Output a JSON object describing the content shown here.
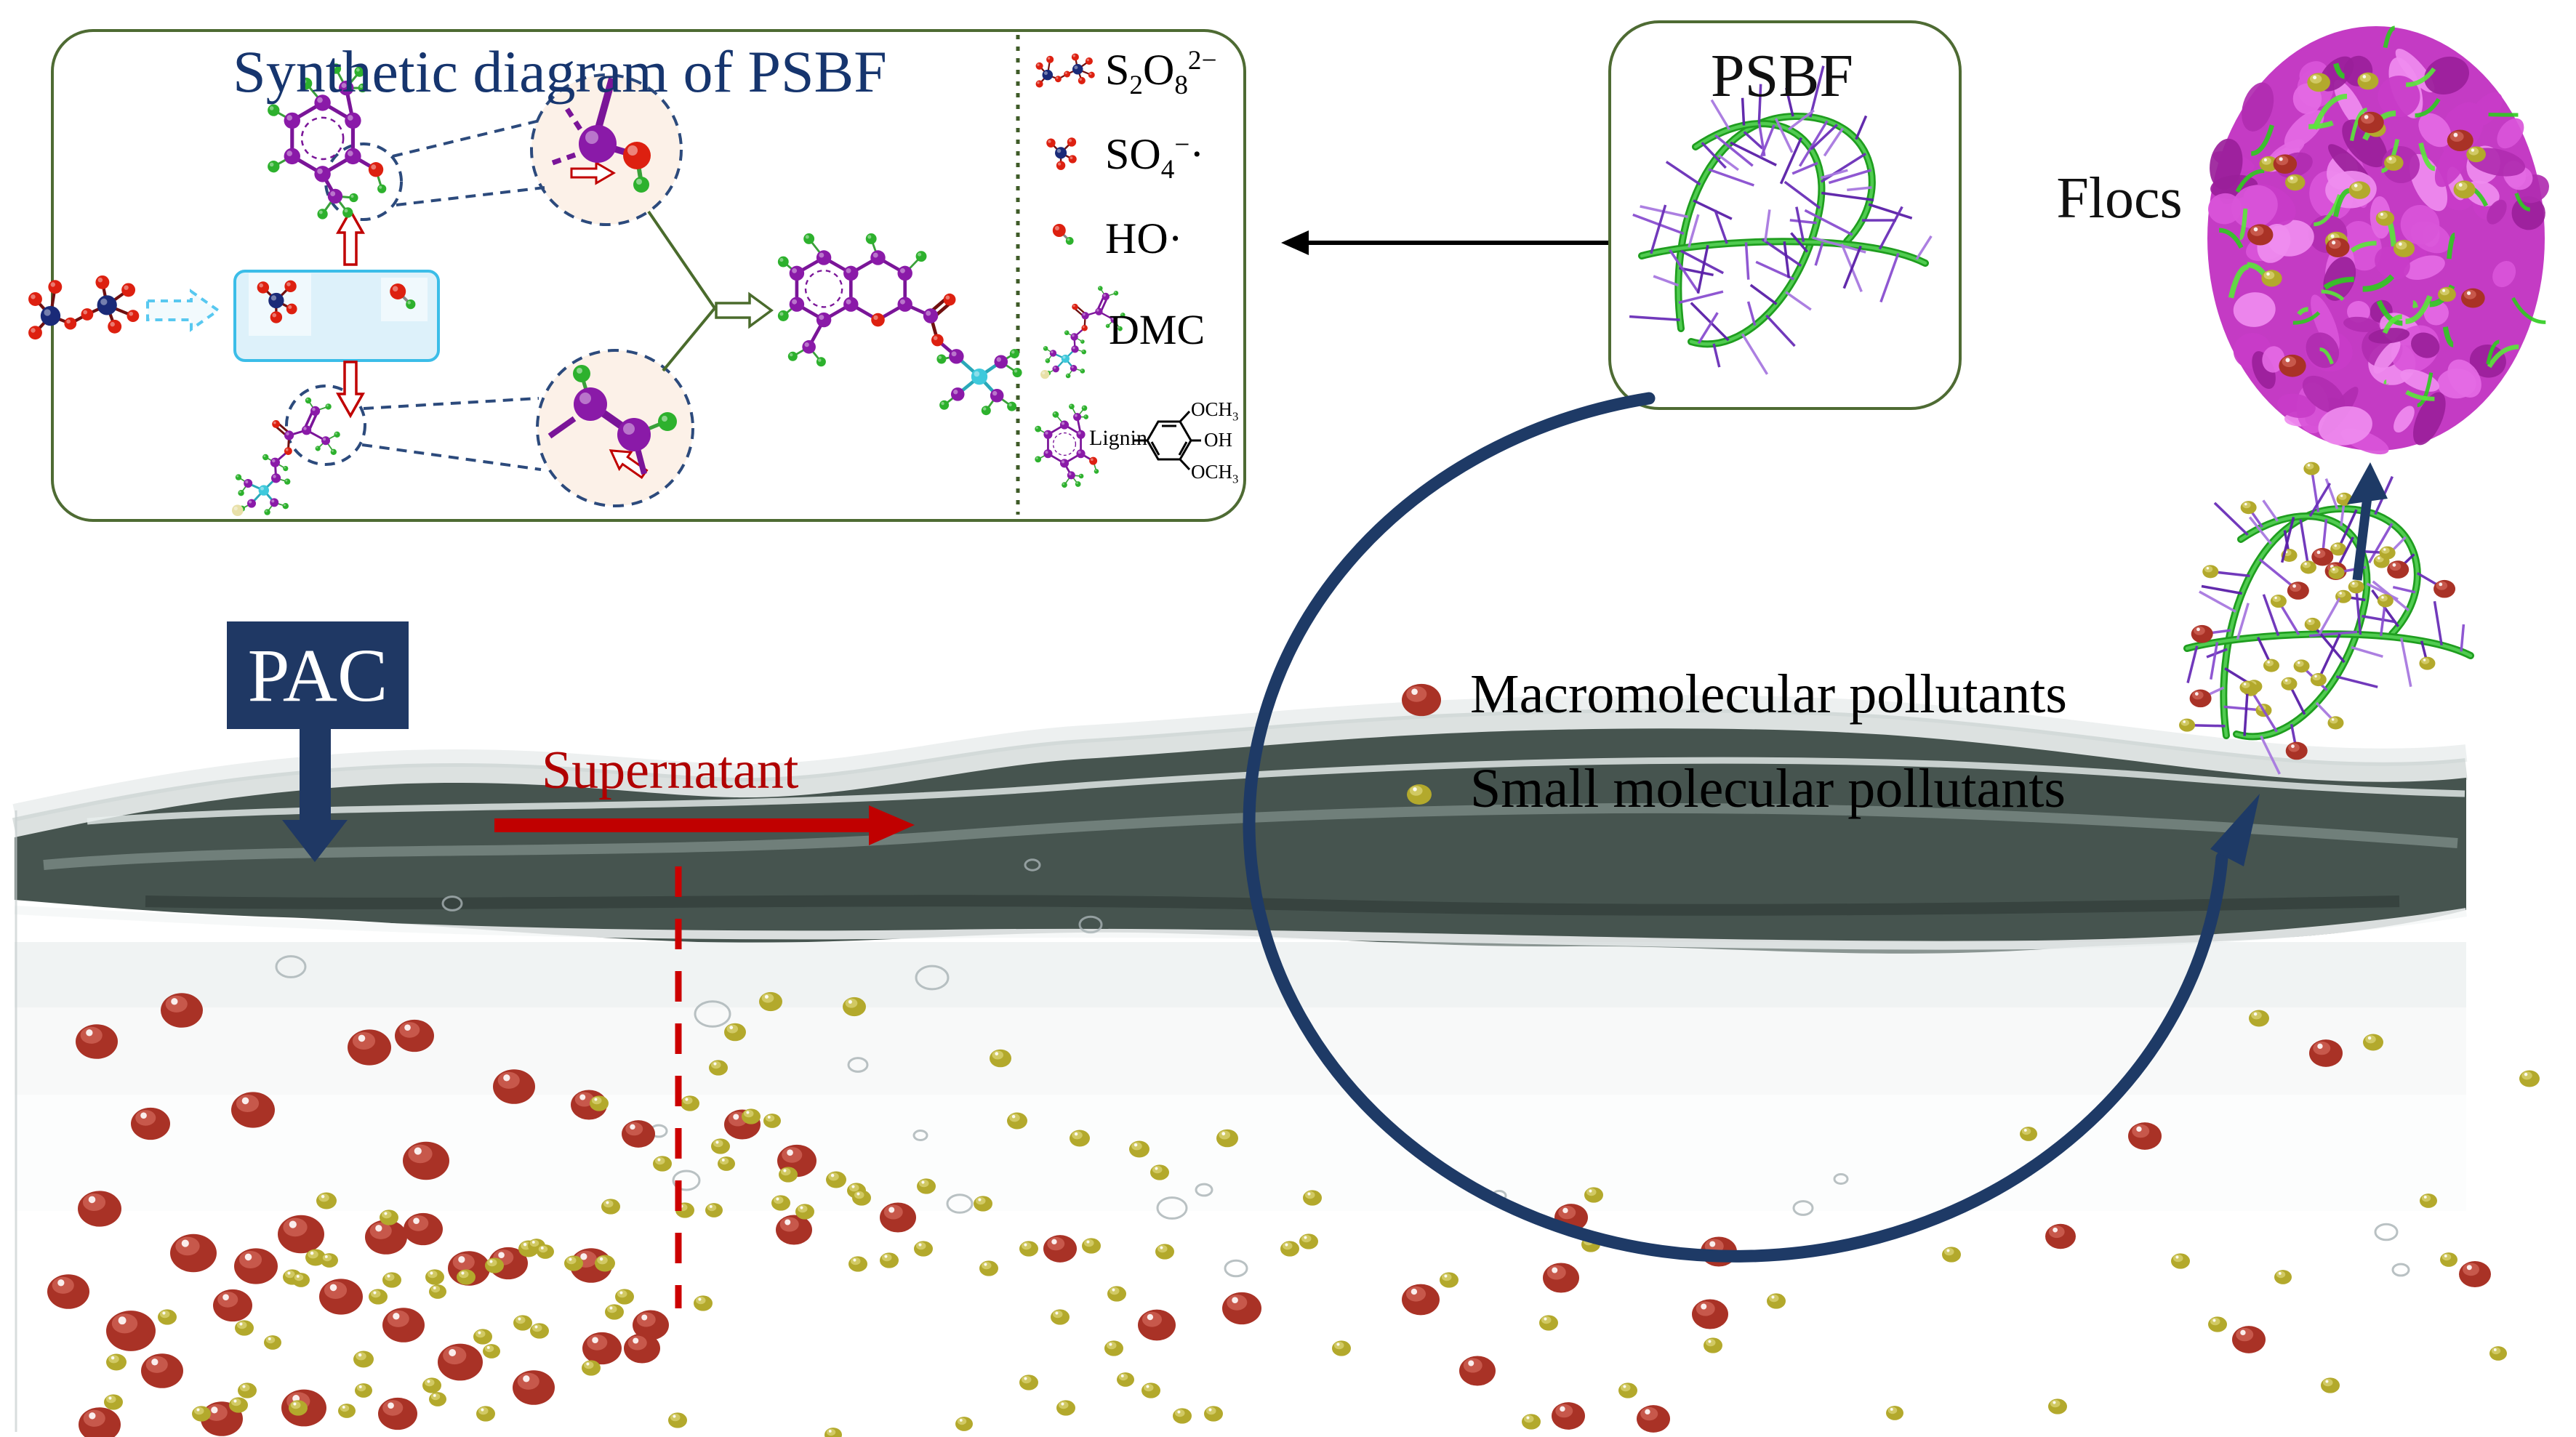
{
  "figure": {
    "synthetic_box": {
      "title": "Synthetic diagram of PSBF",
      "legend": {
        "persulfate": {
          "formula_html": "S<sub>2</sub>O<sub>8</sub><sup>2−</sup>"
        },
        "sulfate_radical": {
          "formula_html": "SO<sub>4</sub><sup>−</sup>·"
        },
        "hydroxyl_radical": {
          "formula_html": "HO·"
        },
        "dmc": {
          "label": "DMC"
        },
        "lignin": {
          "label": "Lignin",
          "och3_top_html": "OCH<sub>3</sub>",
          "oh": "OH",
          "och3_bottom_html": "OCH<sub>3</sub>"
        }
      }
    },
    "psbf_box": {
      "title": "PSBF"
    },
    "flocs_label": "Flocs",
    "pollutant_legend": {
      "macromolecular": "Macromolecular pollutants",
      "small_molecular": "Small molecular pollutants"
    },
    "pac_label": "PAC",
    "supernatant_label": "Supernatant",
    "colors": {
      "title_blue": "#16356e",
      "pac_navy": "#1f3864",
      "supernatant_red": "#b00000",
      "arrow_red": "#c00000",
      "cycle_navy": "#1e3a66",
      "box_border_green": "#4e6b33",
      "blue_box_fill": "#ddf1fa",
      "blue_box_border": "#3bbde8",
      "macro_pollutant_red": "#a93226",
      "macro_pollutant_red_hi": "#cd5f52",
      "small_pollutant_yellow": "#b3a92c",
      "small_pollutant_yellow_hi": "#d6cf6d",
      "polymer_green": "#1f9e1f",
      "polymer_green_hi": "#55d055",
      "bristle_purples": [
        "#6a2fb8",
        "#8a4fd0",
        "#a879e0",
        "#5a1fa8"
      ],
      "flocs_magenta": "#c43bc4",
      "atom_carbon": "#8a1aa8",
      "atom_hydrogen": "#2db12d",
      "atom_oxygen": "#dd2010",
      "atom_sulfur": "#1a2a78",
      "atom_nitrogen": "#3ec9dc",
      "atom_counterion": "#e8e0a8"
    },
    "water_scene": {
      "red_particles": [
        [
          250,
          1390,
          29
        ],
        [
          133,
          1433,
          29
        ],
        [
          508,
          1441,
          30
        ],
        [
          570,
          1425,
          27
        ],
        [
          348,
          1527,
          30
        ],
        [
          207,
          1546,
          27
        ],
        [
          707,
          1495,
          29
        ],
        [
          586,
          1597,
          32
        ],
        [
          137,
          1663,
          30
        ],
        [
          414,
          1698,
          32
        ],
        [
          531,
          1702,
          29
        ],
        [
          582,
          1691,
          27
        ],
        [
          266,
          1724,
          32
        ],
        [
          352,
          1742,
          30
        ],
        [
          94,
          1777,
          29
        ],
        [
          469,
          1784,
          30
        ],
        [
          180,
          1831,
          34
        ],
        [
          223,
          1886,
          29
        ],
        [
          320,
          1796,
          27
        ],
        [
          645,
          1745,
          29
        ],
        [
          699,
          1738,
          27
        ],
        [
          813,
          1741,
          29
        ],
        [
          828,
          1855,
          27
        ],
        [
          555,
          1823,
          29
        ],
        [
          633,
          1874,
          31
        ],
        [
          734,
          1909,
          29
        ],
        [
          418,
          1937,
          31
        ],
        [
          137,
          1960,
          29
        ],
        [
          305,
          1952,
          29
        ],
        [
          895,
          1823,
          25
        ],
        [
          883,
          1855,
          25
        ],
        [
          547,
          1945,
          27
        ],
        [
          810,
          1520,
          25
        ],
        [
          878,
          1560,
          23
        ],
        [
          1021,
          1547,
          25
        ],
        [
          1096,
          1597,
          27
        ],
        [
          1092,
          1692,
          25
        ],
        [
          1235,
          1675,
          25
        ],
        [
          1458,
          1718,
          23
        ],
        [
          1591,
          1823,
          26
        ],
        [
          1708,
          1800,
          27
        ],
        [
          1954,
          1788,
          26
        ],
        [
          2032,
          1886,
          25
        ],
        [
          2161,
          1675,
          23
        ],
        [
          2364,
          1722,
          25
        ],
        [
          2147,
          1758,
          25
        ],
        [
          2352,
          1808,
          25
        ],
        [
          2274,
          1952,
          23
        ],
        [
          2157,
          1948,
          23
        ],
        [
          2950,
          1563,
          23
        ],
        [
          3199,
          1449,
          23
        ],
        [
          3093,
          1843,
          23
        ],
        [
          2834,
          1701,
          21
        ],
        [
          3404,
          1753,
          22
        ]
      ],
      "yellow_particles": [
        [
          449,
          1652,
          14
        ],
        [
          535,
          1675,
          13
        ],
        [
          434,
          1730,
          14
        ],
        [
          453,
          1734,
          12
        ],
        [
          402,
          1757,
          13
        ],
        [
          414,
          1761,
          12
        ],
        [
          500,
          1870,
          14
        ],
        [
          539,
          1761,
          13
        ],
        [
          520,
          1784,
          13
        ],
        [
          598,
          1757,
          13
        ],
        [
          602,
          1777,
          12
        ],
        [
          641,
          1757,
          13
        ],
        [
          680,
          1741,
          13
        ],
        [
          727,
          1718,
          14
        ],
        [
          738,
          1714,
          12
        ],
        [
          789,
          1738,
          13
        ],
        [
          832,
          1738,
          14
        ],
        [
          230,
          1812,
          13
        ],
        [
          160,
          1874,
          14
        ],
        [
          156,
          1929,
          13
        ],
        [
          277,
          1945,
          13
        ],
        [
          328,
          1933,
          13
        ],
        [
          336,
          1827,
          13
        ],
        [
          375,
          1847,
          12
        ],
        [
          340,
          1913,
          13
        ],
        [
          410,
          1937,
          13
        ],
        [
          500,
          1913,
          12
        ],
        [
          477,
          1941,
          12
        ],
        [
          594,
          1906,
          13
        ],
        [
          602,
          1925,
          12
        ],
        [
          668,
          1945,
          13
        ],
        [
          719,
          1820,
          13
        ],
        [
          664,
          1839,
          13
        ],
        [
          676,
          1859,
          12
        ],
        [
          742,
          1831,
          13
        ],
        [
          813,
          1882,
          13
        ],
        [
          859,
          1784,
          13
        ],
        [
          750,
          1722,
          12
        ],
        [
          1060,
          1378,
          16
        ],
        [
          1175,
          1385,
          16
        ],
        [
          1011,
          1420,
          15
        ],
        [
          988,
          1469,
          13
        ],
        [
          949,
          1518,
          13
        ],
        [
          824,
          1518,
          13
        ],
        [
          911,
          1601,
          13
        ],
        [
          1033,
          1536,
          13
        ],
        [
          1062,
          1542,
          12
        ],
        [
          991,
          1577,
          13
        ],
        [
          999,
          1601,
          12
        ],
        [
          1084,
          1616,
          13
        ],
        [
          1150,
          1623,
          14
        ],
        [
          1178,
          1638,
          13
        ],
        [
          942,
          1665,
          13
        ],
        [
          982,
          1665,
          12
        ],
        [
          1074,
          1655,
          13
        ],
        [
          1107,
          1667,
          13
        ],
        [
          1185,
          1648,
          13
        ],
        [
          840,
          1660,
          13
        ],
        [
          845,
          1805,
          13
        ],
        [
          967,
          1793,
          13
        ],
        [
          1180,
          1739,
          13
        ],
        [
          932,
          1954,
          13
        ],
        [
          1146,
          1974,
          12
        ],
        [
          1376,
          1456,
          15
        ],
        [
          1399,
          1542,
          14
        ],
        [
          1485,
          1566,
          14
        ],
        [
          1567,
          1581,
          14
        ],
        [
          1688,
          1566,
          15
        ],
        [
          1595,
          1613,
          13
        ],
        [
          1274,
          1632,
          13
        ],
        [
          1352,
          1656,
          13
        ],
        [
          1805,
          1648,
          13
        ],
        [
          1270,
          1718,
          13
        ],
        [
          1223,
          1734,
          13
        ],
        [
          1360,
          1745,
          13
        ],
        [
          1415,
          1718,
          13
        ],
        [
          1501,
          1714,
          13
        ],
        [
          1602,
          1722,
          13
        ],
        [
          1774,
          1718,
          13
        ],
        [
          1536,
          1780,
          13
        ],
        [
          1458,
          1812,
          13
        ],
        [
          1415,
          1902,
          13
        ],
        [
          1466,
          1937,
          13
        ],
        [
          1532,
          1855,
          13
        ],
        [
          1548,
          1898,
          12
        ],
        [
          1583,
          1913,
          13
        ],
        [
          1626,
          1948,
          13
        ],
        [
          1669,
          1945,
          13
        ],
        [
          1845,
          1855,
          13
        ],
        [
          1993,
          1761,
          13
        ],
        [
          2130,
          1820,
          13
        ],
        [
          2356,
          1851,
          13
        ],
        [
          2239,
          1913,
          13
        ],
        [
          2106,
          1956,
          13
        ],
        [
          2192,
          1644,
          13
        ],
        [
          1800,
          1708,
          13
        ],
        [
          2188,
          1712,
          13
        ],
        [
          2443,
          1790,
          13
        ],
        [
          2684,
          1726,
          13
        ],
        [
          2999,
          1735,
          13
        ],
        [
          3107,
          1401,
          14
        ],
        [
          3264,
          1434,
          14
        ],
        [
          3479,
          1484,
          14
        ],
        [
          2830,
          1935,
          13
        ],
        [
          3050,
          1822,
          13
        ],
        [
          3205,
          1906,
          13
        ],
        [
          3340,
          1652,
          12
        ],
        [
          3368,
          1733,
          12
        ],
        [
          2790,
          1560,
          12
        ],
        [
          3140,
          1757,
          12
        ],
        [
          3436,
          1862,
          12
        ],
        [
          2606,
          1944,
          12
        ],
        [
          1326,
          1959,
          12
        ]
      ],
      "bubbles": [
        [
          400,
          1330,
          20
        ],
        [
          622,
          1243,
          13
        ],
        [
          980,
          1395,
          24
        ],
        [
          944,
          1624,
          18
        ],
        [
          906,
          1556,
          11
        ],
        [
          1500,
          1272,
          15
        ],
        [
          1282,
          1345,
          22
        ],
        [
          1180,
          1465,
          13
        ],
        [
          1320,
          1656,
          17
        ],
        [
          1266,
          1562,
          9
        ],
        [
          1700,
          1745,
          15
        ],
        [
          2480,
          1662,
          13
        ],
        [
          2532,
          1622,
          9
        ],
        [
          3282,
          1695,
          15
        ],
        [
          3302,
          1747,
          11
        ],
        [
          1612,
          1662,
          20
        ],
        [
          1656,
          1637,
          11
        ],
        [
          2062,
          1645,
          9
        ],
        [
          1420,
          1190,
          10
        ]
      ]
    }
  }
}
